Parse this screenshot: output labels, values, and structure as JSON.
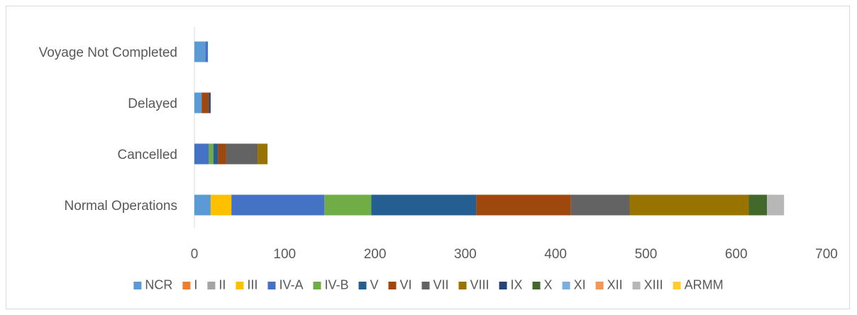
{
  "chart_data": {
    "type": "bar",
    "orientation": "horizontal",
    "stacked": true,
    "categories": [
      "Normal Operations",
      "Cancelled",
      "Delayed",
      "Voyage Not Completed"
    ],
    "series": [
      {
        "name": "NCR",
        "color": "#5b9bd5",
        "values": [
          18,
          0,
          8,
          12
        ]
      },
      {
        "name": "I",
        "color": "#ed7d31",
        "values": [
          0,
          0,
          0,
          0
        ]
      },
      {
        "name": "II",
        "color": "#a5a5a5",
        "values": [
          0,
          0,
          0,
          0
        ]
      },
      {
        "name": "III",
        "color": "#ffc000",
        "values": [
          23,
          0,
          0,
          0
        ]
      },
      {
        "name": "IV-A",
        "color": "#4472c4",
        "values": [
          103,
          16,
          0,
          3
        ]
      },
      {
        "name": "IV-B",
        "color": "#70ad47",
        "values": [
          52,
          5,
          0,
          0
        ]
      },
      {
        "name": "V",
        "color": "#255e91",
        "values": [
          116,
          5,
          0,
          0
        ]
      },
      {
        "name": "VI",
        "color": "#9e480e",
        "values": [
          105,
          9,
          8,
          0
        ]
      },
      {
        "name": "VII",
        "color": "#636363",
        "values": [
          65,
          35,
          0,
          0
        ]
      },
      {
        "name": "VIII",
        "color": "#997300",
        "values": [
          132,
          11,
          0,
          0
        ]
      },
      {
        "name": "IX",
        "color": "#264478",
        "values": [
          0,
          0,
          2,
          0
        ]
      },
      {
        "name": "X",
        "color": "#43682b",
        "values": [
          20,
          0,
          0,
          0
        ]
      },
      {
        "name": "XI",
        "color": "#7cafdd",
        "values": [
          0,
          0,
          0,
          0
        ]
      },
      {
        "name": "XII",
        "color": "#f1975a",
        "values": [
          0,
          0,
          0,
          0
        ]
      },
      {
        "name": "XIII",
        "color": "#b7b7b7",
        "values": [
          19,
          0,
          0,
          0
        ]
      },
      {
        "name": "ARMM",
        "color": "#ffcd33",
        "values": [
          0,
          0,
          0,
          0
        ]
      }
    ],
    "xlim": [
      0,
      700
    ],
    "xticks": [
      "0",
      "100",
      "200",
      "300",
      "400",
      "500",
      "600",
      "700"
    ],
    "grid": false,
    "legend_position": "bottom"
  }
}
